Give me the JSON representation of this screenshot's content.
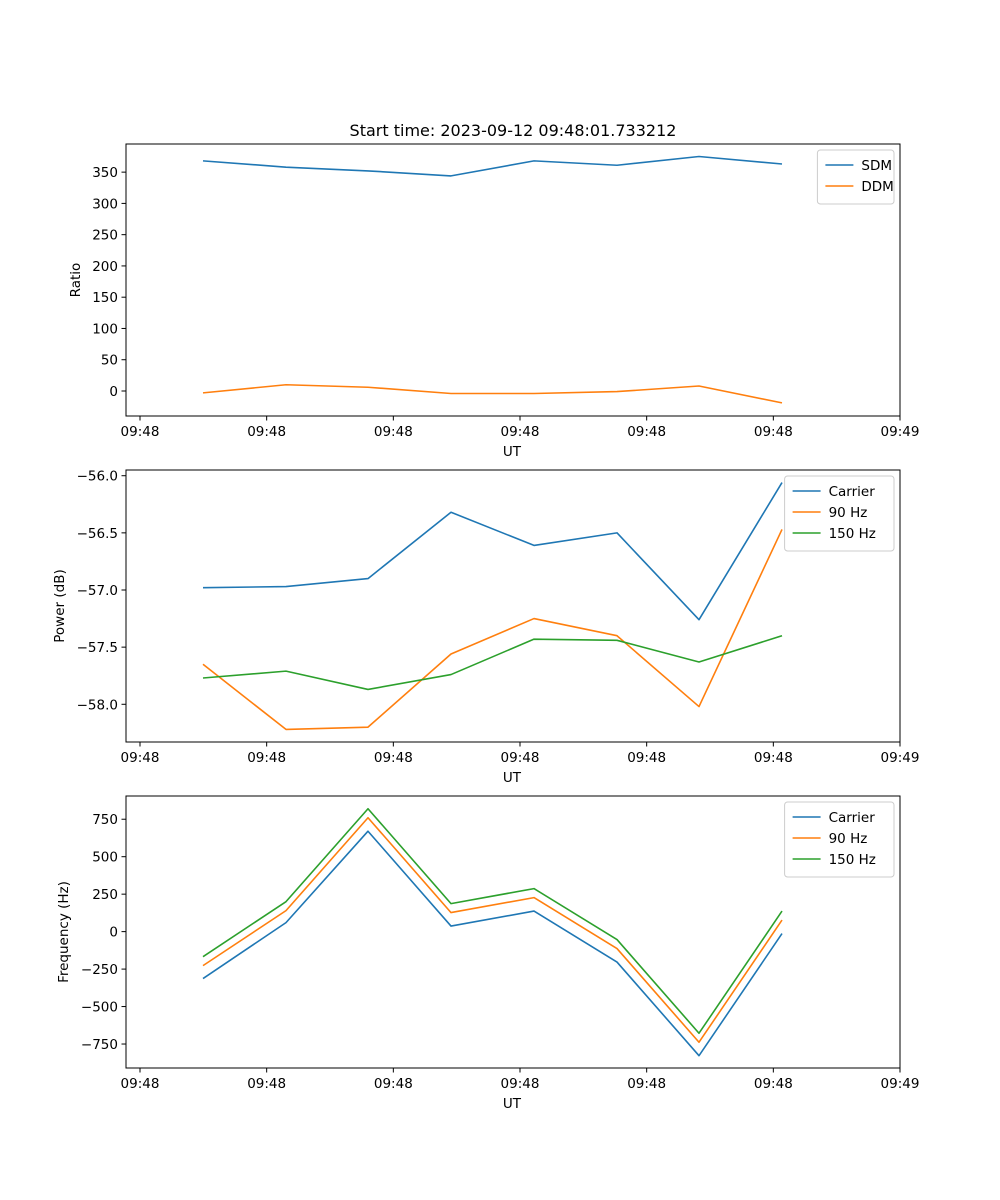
{
  "chart_data": [
    {
      "type": "line",
      "title": "Start time: 2023-09-12 09:48:01.733212",
      "xlabel": "UT",
      "ylabel": "Ratio",
      "x_tick_labels": [
        "09:48",
        "09:48",
        "09:48",
        "09:48",
        "09:48",
        "09:48",
        "09:48",
        "09:49"
      ],
      "ylim": [
        -40,
        395
      ],
      "y_ticks": [
        0,
        50,
        100,
        150,
        200,
        250,
        300,
        350
      ],
      "legend_position": "top-right",
      "series": [
        {
          "name": "SDM",
          "color": "#1f77b4",
          "values": [
            368,
            358,
            352,
            344,
            368,
            361,
            375,
            363
          ]
        },
        {
          "name": "DDM",
          "color": "#ff7f0e",
          "values": [
            -3,
            10,
            6,
            -4,
            -4,
            -1,
            8,
            -19
          ]
        }
      ]
    },
    {
      "type": "line",
      "title": "",
      "xlabel": "UT",
      "ylabel": "Power (dB)",
      "x_tick_labels": [
        "09:48",
        "09:48",
        "09:48",
        "09:48",
        "09:48",
        "09:48",
        "09:48",
        "09:49"
      ],
      "ylim": [
        -58.33,
        -55.95
      ],
      "y_ticks": [
        -58.0,
        -57.5,
        -57.0,
        -56.5,
        -56.0
      ],
      "y_tick_labels": [
        "−58.0",
        "−57.5",
        "−57.0",
        "−56.5",
        "−56.0"
      ],
      "legend_position": "top-right",
      "series": [
        {
          "name": "Carrier",
          "color": "#1f77b4",
          "values": [
            -56.98,
            -56.97,
            -56.9,
            -56.32,
            -56.61,
            -56.5,
            -57.26,
            -56.06
          ]
        },
        {
          "name": "90 Hz",
          "color": "#ff7f0e",
          "values": [
            -57.65,
            -58.22,
            -58.2,
            -57.56,
            -57.25,
            -57.4,
            -58.02,
            -56.47
          ]
        },
        {
          "name": "150 Hz",
          "color": "#2ca02c",
          "values": [
            -57.77,
            -57.71,
            -57.87,
            -57.74,
            -57.43,
            -57.44,
            -57.63,
            -57.4
          ]
        }
      ]
    },
    {
      "type": "line",
      "title": "",
      "xlabel": "UT",
      "ylabel": "Frequency (Hz)",
      "x_tick_labels": [
        "09:48",
        "09:48",
        "09:48",
        "09:48",
        "09:48",
        "09:48",
        "09:48",
        "09:49"
      ],
      "ylim": [
        -910,
        905
      ],
      "y_ticks": [
        -750,
        -500,
        -250,
        0,
        250,
        500,
        750
      ],
      "y_tick_labels": [
        "−750",
        "−500",
        "−250",
        "0",
        "250",
        "500",
        "750"
      ],
      "legend_position": "top-right",
      "series": [
        {
          "name": "Carrier",
          "color": "#1f77b4",
          "values": [
            -313,
            60,
            670,
            37,
            137,
            -203,
            -828,
            -13
          ]
        },
        {
          "name": "90 Hz",
          "color": "#ff7f0e",
          "values": [
            -227,
            140,
            760,
            127,
            227,
            -113,
            -738,
            77
          ]
        },
        {
          "name": "150 Hz",
          "color": "#2ca02c",
          "values": [
            -167,
            200,
            820,
            187,
            287,
            -53,
            -678,
            137
          ]
        }
      ]
    }
  ]
}
